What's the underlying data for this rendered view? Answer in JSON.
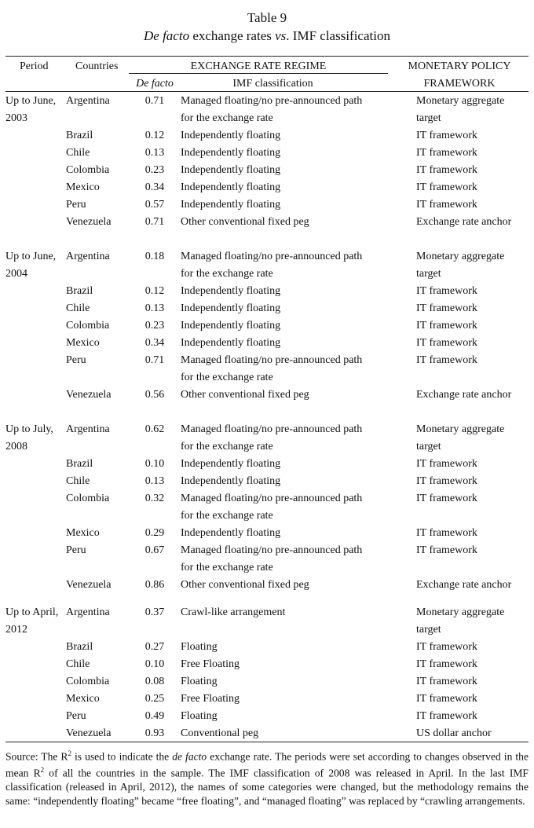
{
  "title": {
    "line1": "Table 9",
    "line2_italic": "De facto",
    "line2_rest": " exchange rates ",
    "line2_vs": "vs",
    "line2_end": ". IMF classification"
  },
  "header": {
    "period": "Period",
    "countries": "Countries",
    "regime": "EXCHANGE RATE REGIME",
    "defacto": "De facto",
    "imf": "IMF classification",
    "framework_line1": "MONETARY POLICY",
    "framework_line2": "FRAMEWORK"
  },
  "groups": [
    {
      "period": [
        "Up to June,",
        "2003"
      ],
      "rows": [
        {
          "country": "Argentina",
          "defacto": "0.71",
          "imf": [
            "Managed floating/no pre-announced path",
            "for the exchange rate"
          ],
          "framework": [
            "Monetary aggregate",
            "target"
          ]
        },
        {
          "country": "Brazil",
          "defacto": "0.12",
          "imf": [
            "Independently floating"
          ],
          "framework": [
            "IT framework"
          ]
        },
        {
          "country": "Chile",
          "defacto": "0.13",
          "imf": [
            "Independently floating"
          ],
          "framework": [
            "IT framework"
          ]
        },
        {
          "country": "Colombia",
          "defacto": "0.23",
          "imf": [
            "Independently floating"
          ],
          "framework": [
            "IT framework"
          ]
        },
        {
          "country": "Mexico",
          "defacto": "0.34",
          "imf": [
            "Independently floating"
          ],
          "framework": [
            "IT framework"
          ]
        },
        {
          "country": "Peru",
          "defacto": "0.57",
          "imf": [
            "Independently floating"
          ],
          "framework": [
            "IT framework"
          ]
        },
        {
          "country": "Venezuela",
          "defacto": "0.71",
          "imf": [
            "Other conventional fixed peg"
          ],
          "framework": [
            "Exchange rate anchor"
          ]
        }
      ]
    },
    {
      "period": [
        "Up to June,",
        "2004"
      ],
      "rows": [
        {
          "country": "Argentina",
          "defacto": "0.18",
          "imf": [
            "Managed floating/no pre-announced path",
            "for the exchange rate"
          ],
          "framework": [
            "Monetary aggregate",
            "target"
          ]
        },
        {
          "country": "Brazil",
          "defacto": "0.12",
          "imf": [
            "Independently floating"
          ],
          "framework": [
            "IT framework"
          ]
        },
        {
          "country": "Chile",
          "defacto": "0.13",
          "imf": [
            "Independently floating"
          ],
          "framework": [
            "IT framework"
          ]
        },
        {
          "country": "Colombia",
          "defacto": "0.23",
          "imf": [
            "Independently floating"
          ],
          "framework": [
            "IT framework"
          ]
        },
        {
          "country": "Mexico",
          "defacto": "0.34",
          "imf": [
            "Independently floating"
          ],
          "framework": [
            "IT framework"
          ]
        },
        {
          "country": "Peru",
          "defacto": "0.71",
          "imf": [
            "Managed floating/no pre-announced path",
            "for the exchange rate"
          ],
          "framework": [
            "IT framework"
          ]
        },
        {
          "country": "Venezuela",
          "defacto": "0.56",
          "imf": [
            "Other conventional fixed peg"
          ],
          "framework": [
            "Exchange rate anchor"
          ]
        }
      ]
    },
    {
      "period": [
        "Up to July,",
        "2008"
      ],
      "rows": [
        {
          "country": "Argentina",
          "defacto": "0.62",
          "imf": [
            "Managed floating/no pre-announced path",
            "for the exchange rate"
          ],
          "framework": [
            "Monetary aggregate",
            "target"
          ]
        },
        {
          "country": "Brazil",
          "defacto": "0.10",
          "imf": [
            "Independently floating"
          ],
          "framework": [
            "IT framework"
          ]
        },
        {
          "country": "Chile",
          "defacto": "0.13",
          "imf": [
            "Independently floating"
          ],
          "framework": [
            "IT framework"
          ]
        },
        {
          "country": "Colombia",
          "defacto": "0.32",
          "imf": [
            "Managed floating/no pre-announced path",
            "for the exchange rate"
          ],
          "framework": [
            "IT framework"
          ]
        },
        {
          "country": "Mexico",
          "defacto": "0.29",
          "imf": [
            "Independently floating"
          ],
          "framework": [
            "IT framework"
          ]
        },
        {
          "country": "Peru",
          "defacto": "0.67",
          "imf": [
            "Managed floating/no pre-announced path",
            "for the exchange rate"
          ],
          "framework": [
            "IT framework"
          ]
        },
        {
          "country": "Venezuela",
          "defacto": "0.86",
          "imf": [
            "Other conventional fixed peg"
          ],
          "framework": [
            "Exchange rate anchor"
          ]
        }
      ]
    },
    {
      "period": [
        "Up to April,",
        "2012"
      ],
      "rows": [
        {
          "country": "Argentina",
          "defacto": "0.37",
          "imf": [
            "Crawl-like arrangement"
          ],
          "framework": [
            "Monetary aggregate",
            "target"
          ]
        },
        {
          "country": "Brazil",
          "defacto": "0.27",
          "imf": [
            "Floating"
          ],
          "framework": [
            "IT framework"
          ]
        },
        {
          "country": "Chile",
          "defacto": "0.10",
          "imf": [
            "Free Floating"
          ],
          "framework": [
            "IT framework"
          ]
        },
        {
          "country": "Colombia",
          "defacto": "0.08",
          "imf": [
            "Floating"
          ],
          "framework": [
            "IT framework"
          ]
        },
        {
          "country": "Mexico",
          "defacto": "0.25",
          "imf": [
            "Free Floating"
          ],
          "framework": [
            "IT framework"
          ]
        },
        {
          "country": "Peru",
          "defacto": "0.49",
          "imf": [
            "Floating"
          ],
          "framework": [
            "IT framework"
          ]
        },
        {
          "country": "Venezuela",
          "defacto": "0.93",
          "imf": [
            "Conventional peg"
          ],
          "framework": [
            "US dollar anchor"
          ]
        }
      ]
    }
  ],
  "note": {
    "p1": "Source: The R",
    "sup1": "2",
    "p2": " is used to indicate the ",
    "italic": "de facto",
    "p3": " exchange rate. The periods were set according to changes observed in the mean R",
    "sup2": "2",
    "p4": " of all the countries in the sample. The IMF classification of 2008 was released in April. In the last IMF classification (released in April, 2012), the names of some categories were changed, but the methodology remains the same: “independently floating” became “free floating”, and “managed floating” was replaced by “crawling arrangements."
  }
}
